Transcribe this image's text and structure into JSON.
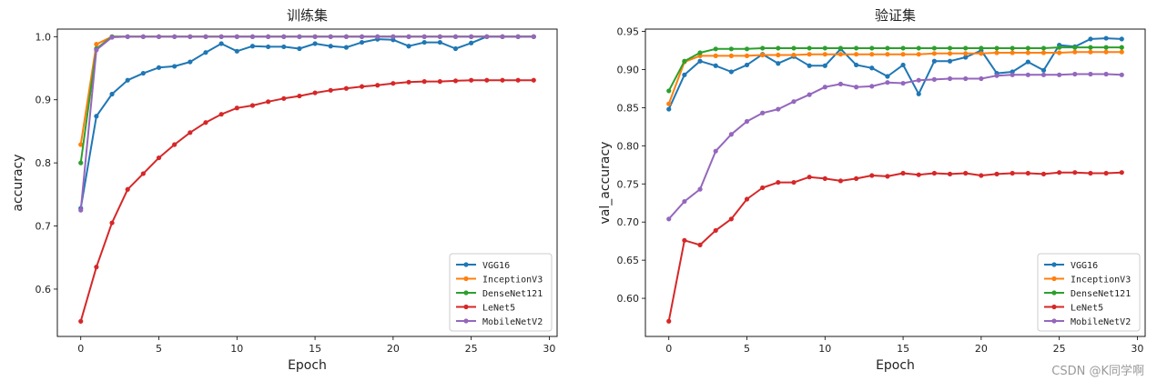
{
  "watermark": "CSDN @K同学啊",
  "chart_data": [
    {
      "type": "line",
      "title": "训练集",
      "xlabel": "Epoch",
      "ylabel": "accuracy",
      "xlim": [
        -1.5,
        30.5
      ],
      "ylim": [
        0.525,
        1.012
      ],
      "xticks": [
        0,
        5,
        10,
        15,
        20,
        25,
        30
      ],
      "yticks": [
        0.6,
        0.7,
        0.8,
        0.9,
        1.0
      ],
      "ytick_labels": [
        "0.6",
        "0.7",
        "0.8",
        "0.9",
        "1.0"
      ],
      "legend_position": "lower-right",
      "x": [
        0,
        1,
        2,
        3,
        4,
        5,
        6,
        7,
        8,
        9,
        10,
        11,
        12,
        13,
        14,
        15,
        16,
        17,
        18,
        19,
        20,
        21,
        22,
        23,
        24,
        25,
        26,
        27,
        28,
        29
      ],
      "series": [
        {
          "name": "VGG16",
          "color": "#1f77b4",
          "values": [
            0.728,
            0.874,
            0.909,
            0.931,
            0.942,
            0.951,
            0.953,
            0.96,
            0.975,
            0.989,
            0.977,
            0.985,
            0.984,
            0.984,
            0.981,
            0.989,
            0.985,
            0.983,
            0.991,
            0.996,
            0.995,
            0.985,
            0.991,
            0.991,
            0.981,
            0.99,
            1.0,
            1.0,
            1.0,
            1.0
          ]
        },
        {
          "name": "InceptionV3",
          "color": "#ff7f0e",
          "values": [
            0.829,
            0.988,
            1.0,
            1.0,
            1.0,
            1.0,
            1.0,
            1.0,
            1.0,
            1.0,
            1.0,
            1.0,
            1.0,
            1.0,
            1.0,
            1.0,
            1.0,
            1.0,
            1.0,
            1.0,
            1.0,
            1.0,
            1.0,
            1.0,
            1.0,
            1.0,
            1.0,
            1.0,
            1.0,
            1.0
          ]
        },
        {
          "name": "DenseNet121",
          "color": "#2ca02c",
          "values": [
            0.8,
            0.981,
            1.0,
            1.0,
            1.0,
            1.0,
            1.0,
            1.0,
            1.0,
            1.0,
            1.0,
            1.0,
            1.0,
            1.0,
            1.0,
            1.0,
            1.0,
            1.0,
            1.0,
            1.0,
            1.0,
            1.0,
            1.0,
            1.0,
            1.0,
            1.0,
            1.0,
            1.0,
            1.0,
            1.0
          ]
        },
        {
          "name": "LeNet5",
          "color": "#d62728",
          "values": [
            0.549,
            0.635,
            0.705,
            0.758,
            0.783,
            0.808,
            0.829,
            0.848,
            0.864,
            0.877,
            0.887,
            0.891,
            0.897,
            0.902,
            0.906,
            0.911,
            0.915,
            0.918,
            0.921,
            0.923,
            0.926,
            0.928,
            0.929,
            0.929,
            0.93,
            0.931,
            0.931,
            0.931,
            0.931,
            0.931
          ]
        },
        {
          "name": "MobileNetV2",
          "color": "#9467bd",
          "values": [
            0.725,
            0.979,
            0.999,
            1.0,
            1.0,
            1.0,
            1.0,
            1.0,
            1.0,
            1.0,
            1.0,
            1.0,
            1.0,
            1.0,
            1.0,
            1.0,
            1.0,
            1.0,
            1.0,
            1.0,
            1.0,
            1.0,
            1.0,
            1.0,
            1.0,
            1.0,
            1.0,
            1.0,
            1.0,
            1.0
          ]
        }
      ]
    },
    {
      "type": "line",
      "title": "验证集",
      "xlabel": "Epoch",
      "ylabel": "val_accuracy",
      "xlim": [
        -1.5,
        30.5
      ],
      "ylim": [
        0.55,
        0.953
      ],
      "xticks": [
        0,
        5,
        10,
        15,
        20,
        25,
        30
      ],
      "yticks": [
        0.6,
        0.65,
        0.7,
        0.75,
        0.8,
        0.85,
        0.9,
        0.95
      ],
      "ytick_labels": [
        "0.60",
        "0.65",
        "0.70",
        "0.75",
        "0.80",
        "0.85",
        "0.90",
        "0.95"
      ],
      "legend_position": "lower-right",
      "x": [
        0,
        1,
        2,
        3,
        4,
        5,
        6,
        7,
        8,
        9,
        10,
        11,
        12,
        13,
        14,
        15,
        16,
        17,
        18,
        19,
        20,
        21,
        22,
        23,
        24,
        25,
        26,
        27,
        28,
        29
      ],
      "series": [
        {
          "name": "VGG16",
          "color": "#1f77b4",
          "values": [
            0.848,
            0.893,
            0.911,
            0.905,
            0.897,
            0.906,
            0.92,
            0.908,
            0.917,
            0.905,
            0.905,
            0.927,
            0.906,
            0.902,
            0.891,
            0.906,
            0.868,
            0.911,
            0.911,
            0.916,
            0.925,
            0.895,
            0.897,
            0.91,
            0.899,
            0.932,
            0.93,
            0.94,
            0.941,
            0.94
          ]
        },
        {
          "name": "InceptionV3",
          "color": "#ff7f0e",
          "values": [
            0.855,
            0.91,
            0.918,
            0.918,
            0.918,
            0.918,
            0.919,
            0.919,
            0.919,
            0.92,
            0.92,
            0.92,
            0.92,
            0.92,
            0.92,
            0.92,
            0.92,
            0.921,
            0.921,
            0.921,
            0.921,
            0.922,
            0.922,
            0.922,
            0.922,
            0.922,
            0.923,
            0.923,
            0.923,
            0.923
          ]
        },
        {
          "name": "DenseNet121",
          "color": "#2ca02c",
          "values": [
            0.872,
            0.911,
            0.922,
            0.927,
            0.927,
            0.927,
            0.928,
            0.928,
            0.928,
            0.928,
            0.928,
            0.928,
            0.928,
            0.928,
            0.928,
            0.928,
            0.928,
            0.928,
            0.928,
            0.928,
            0.928,
            0.928,
            0.928,
            0.928,
            0.928,
            0.929,
            0.929,
            0.929,
            0.929,
            0.929
          ]
        },
        {
          "name": "LeNet5",
          "color": "#d62728",
          "values": [
            0.57,
            0.676,
            0.67,
            0.689,
            0.704,
            0.73,
            0.745,
            0.752,
            0.752,
            0.759,
            0.757,
            0.754,
            0.757,
            0.761,
            0.76,
            0.764,
            0.762,
            0.764,
            0.763,
            0.764,
            0.761,
            0.763,
            0.764,
            0.764,
            0.763,
            0.765,
            0.765,
            0.764,
            0.764,
            0.765
          ]
        },
        {
          "name": "MobileNetV2",
          "color": "#9467bd",
          "values": [
            0.704,
            0.727,
            0.743,
            0.793,
            0.815,
            0.832,
            0.843,
            0.848,
            0.858,
            0.867,
            0.877,
            0.881,
            0.877,
            0.878,
            0.883,
            0.882,
            0.886,
            0.887,
            0.888,
            0.888,
            0.888,
            0.892,
            0.893,
            0.893,
            0.893,
            0.893,
            0.894,
            0.894,
            0.894,
            0.893
          ]
        }
      ]
    }
  ]
}
